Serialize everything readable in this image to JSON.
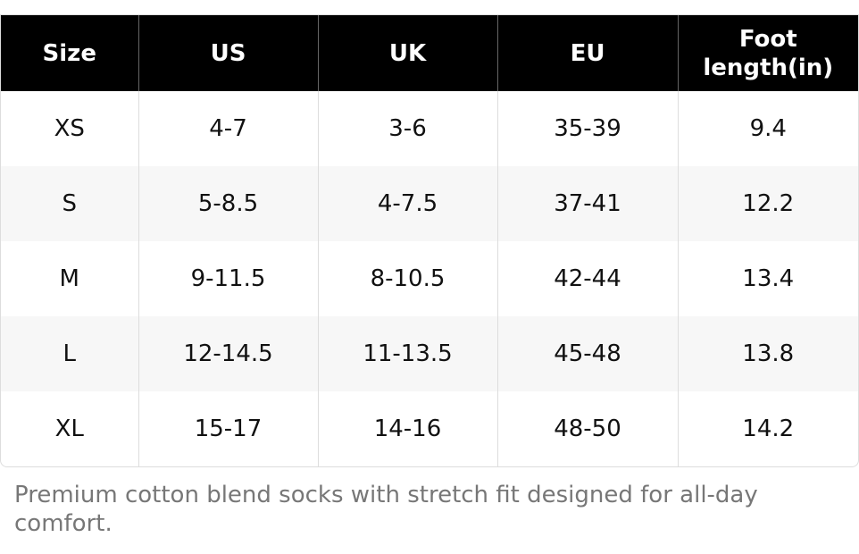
{
  "table": {
    "header": [
      "Size",
      "US",
      "UK",
      "EU",
      "Foot length(in)"
    ],
    "rows": [
      [
        "XS",
        "4-7",
        "3-6",
        "35-39",
        "9.4"
      ],
      [
        "S",
        "5-8.5",
        "4-7.5",
        "37-41",
        "12.2"
      ],
      [
        "M",
        "9-11.5",
        "8-10.5",
        "42-44",
        "13.4"
      ],
      [
        "L",
        "12-14.5",
        "11-13.5",
        "45-48",
        "13.8"
      ],
      [
        "XL",
        "15-17",
        "14-16",
        "48-50",
        "14.2"
      ]
    ]
  },
  "caption": "Premium cotton blend socks with stretch fit designed for all-day comfort."
}
